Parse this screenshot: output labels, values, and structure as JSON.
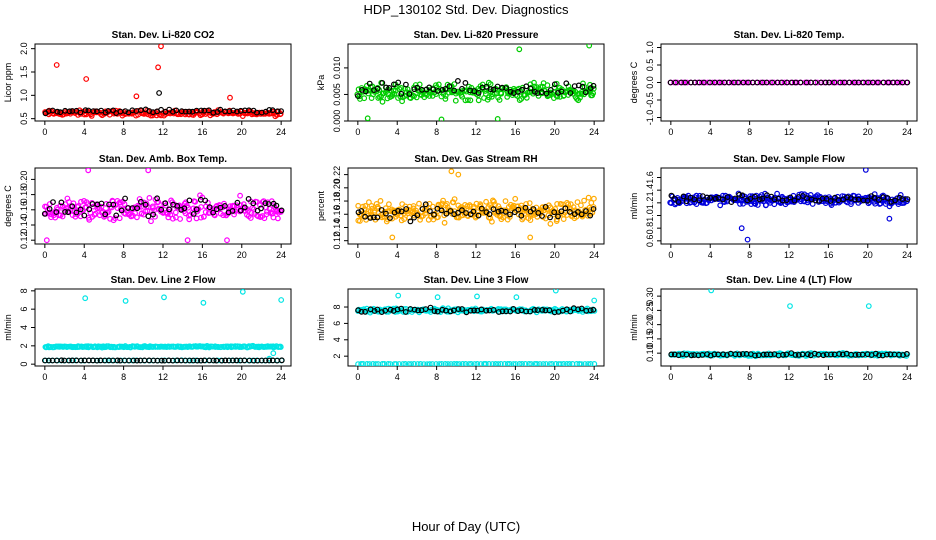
{
  "title": "HDP_130102  Std. Dev. Diagnostics",
  "xlabel": "Hour of Day (UTC)",
  "chart_data": [
    {
      "type": "scatter",
      "title": "Stan. Dev. Li-820 CO2",
      "ylabel": "Licor ppm",
      "xlim": [
        -1,
        25
      ],
      "ylim": [
        0.45,
        2.1
      ],
      "xticks": [
        0,
        4,
        8,
        12,
        16,
        20,
        24
      ],
      "yticks": [
        0.5,
        1.0,
        1.5,
        2.0
      ],
      "ytick_labels": [
        "0.5",
        "1.0",
        "1.5",
        "2.0"
      ],
      "series": [
        {
          "color": "#ff0000",
          "base": 0.62,
          "spread": 0.08,
          "n": 200,
          "outliers": [
            [
              1.2,
              1.65
            ],
            [
              4.2,
              1.35
            ],
            [
              11.5,
              1.6
            ],
            [
              11.8,
              2.05
            ],
            [
              18.8,
              0.95
            ],
            [
              9.3,
              0.98
            ]
          ]
        },
        {
          "color": "#000000",
          "base": 0.66,
          "spread": 0.06,
          "n": 60,
          "outliers": [
            [
              11.6,
              1.05
            ]
          ]
        }
      ]
    },
    {
      "type": "scatter",
      "title": "Stan. Dev. Li-820 Pressure",
      "ylabel": "kPa",
      "xlim": [
        -1,
        25
      ],
      "ylim": [
        0.0,
        0.0145
      ],
      "xticks": [
        0,
        4,
        8,
        12,
        16,
        20,
        24
      ],
      "yticks": [
        0.0,
        0.005,
        0.01
      ],
      "ytick_labels": [
        "0.000",
        "0.005",
        "0.010"
      ],
      "series": [
        {
          "color": "#00cc00",
          "base": 0.0055,
          "spread": 0.0022,
          "n": 260,
          "outliers": [
            [
              23.5,
              0.0142
            ],
            [
              16.4,
              0.0135
            ],
            [
              1.0,
              0.0005
            ],
            [
              8.5,
              0.0003
            ],
            [
              14.2,
              0.0004
            ]
          ]
        },
        {
          "color": "#000000",
          "base": 0.006,
          "spread": 0.0018,
          "n": 60,
          "outliers": []
        }
      ]
    },
    {
      "type": "scatter",
      "title": "Stan. Dev. Li-820 Temp.",
      "ylabel": "degrees C",
      "xlim": [
        -1,
        25
      ],
      "ylim": [
        -1.1,
        1.1
      ],
      "xticks": [
        0,
        4,
        8,
        12,
        16,
        20,
        24
      ],
      "yticks": [
        -1.0,
        -0.5,
        0.0,
        0.5,
        1.0
      ],
      "ytick_labels": [
        "-1.0",
        "-0.5",
        "0.0",
        "0.5",
        "1.0"
      ],
      "series": [
        {
          "color": "#ff00ff",
          "base": 0.0,
          "spread": 0.0,
          "n": 70,
          "outliers": []
        },
        {
          "color": "#000000",
          "base": 0.0,
          "spread": 0.0,
          "n": 50,
          "outliers": []
        }
      ]
    },
    {
      "type": "scatter",
      "title": "Stan. Dev. Amb. Box Temp.",
      "ylabel": "degrees C",
      "xlim": [
        -1,
        25
      ],
      "ylim": [
        0.115,
        0.215
      ],
      "xticks": [
        0,
        4,
        8,
        12,
        16,
        20,
        24
      ],
      "yticks": [
        0.12,
        0.14,
        0.16,
        0.18,
        0.2
      ],
      "ytick_labels": [
        "0.12",
        "0.14",
        "0.16",
        "0.18",
        "0.20"
      ],
      "series": [
        {
          "color": "#ff00ff",
          "base": 0.16,
          "spread": 0.022,
          "n": 260,
          "outliers": [
            [
              0.2,
              0.12
            ],
            [
              4.4,
              0.212
            ],
            [
              10.5,
              0.212
            ],
            [
              18.5,
              0.12
            ],
            [
              14.5,
              0.12
            ]
          ]
        },
        {
          "color": "#000000",
          "base": 0.163,
          "spread": 0.016,
          "n": 60,
          "outliers": []
        }
      ]
    },
    {
      "type": "scatter",
      "title": "Stan. Dev. Gas Stream RH",
      "ylabel": "percent",
      "xlim": [
        -1,
        25
      ],
      "ylim": [
        0.115,
        0.23
      ],
      "xticks": [
        0,
        4,
        8,
        12,
        16,
        20,
        24
      ],
      "yticks": [
        0.12,
        0.14,
        0.16,
        0.18,
        0.2,
        0.22
      ],
      "ytick_labels": [
        "0.12",
        "0.14",
        "0.16",
        "0.18",
        "0.20",
        "0.22"
      ],
      "series": [
        {
          "color": "#ffaa00",
          "base": 0.165,
          "spread": 0.025,
          "n": 300,
          "outliers": [
            [
              9.5,
              0.225
            ],
            [
              10.2,
              0.22
            ],
            [
              3.5,
              0.125
            ],
            [
              17.5,
              0.125
            ]
          ]
        },
        {
          "color": "#000000",
          "base": 0.163,
          "spread": 0.016,
          "n": 60,
          "outliers": []
        }
      ]
    },
    {
      "type": "scatter",
      "title": "Stan. Dev. Sample Flow",
      "ylabel": "ml/min",
      "xlim": [
        -1,
        25
      ],
      "ylim": [
        0.55,
        1.75
      ],
      "xticks": [
        0,
        4,
        8,
        12,
        16,
        20,
        24
      ],
      "yticks": [
        0.6,
        0.8,
        1.0,
        1.2,
        1.4,
        1.6
      ],
      "ytick_labels": [
        "0.6",
        "0.8",
        "1.0",
        "1.2",
        "1.4",
        "1.6"
      ],
      "series": [
        {
          "color": "#0000dd",
          "base": 1.25,
          "spread": 0.12,
          "n": 280,
          "outliers": [
            [
              7.8,
              0.62
            ],
            [
              7.2,
              0.8
            ],
            [
              19.8,
              1.72
            ],
            [
              22.2,
              0.95
            ]
          ]
        },
        {
          "color": "#000000",
          "base": 1.27,
          "spread": 0.08,
          "n": 60,
          "outliers": []
        }
      ]
    },
    {
      "type": "scatter",
      "title": "Stan. Dev. Line 2 Flow",
      "ylabel": "ml/min",
      "xlim": [
        -1,
        25
      ],
      "ylim": [
        -0.2,
        8.2
      ],
      "xticks": [
        0,
        4,
        8,
        12,
        16,
        20,
        24
      ],
      "yticks": [
        0,
        2,
        4,
        6,
        8
      ],
      "ytick_labels": [
        "0",
        "2",
        "4",
        "6",
        "8"
      ],
      "series": [
        {
          "color": "#00e5e5",
          "base": 1.9,
          "spread": 0.12,
          "n": 220,
          "outliers": [
            [
              4.1,
              7.2
            ],
            [
              8.2,
              6.9
            ],
            [
              12.1,
              7.3
            ],
            [
              16.1,
              6.7
            ],
            [
              20.1,
              7.9
            ],
            [
              24.0,
              7.0
            ],
            [
              22.8,
              0.6
            ],
            [
              23.2,
              1.2
            ]
          ]
        },
        {
          "color": "#00e5e5",
          "base": 0.4,
          "spread": 0.02,
          "n": 60,
          "outliers": []
        },
        {
          "color": "#000000",
          "base": 0.4,
          "spread": 0.03,
          "n": 60,
          "outliers": []
        }
      ]
    },
    {
      "type": "scatter",
      "title": "Stan. Dev. Line 3 Flow",
      "ylabel": "ml/min",
      "xlim": [
        -1,
        25
      ],
      "ylim": [
        0.8,
        10.2
      ],
      "xticks": [
        0,
        4,
        8,
        12,
        16,
        20,
        24
      ],
      "yticks": [
        2,
        4,
        6,
        8
      ],
      "ytick_labels": [
        "2",
        "4",
        "6",
        "8"
      ],
      "series": [
        {
          "color": "#00e5e5",
          "base": 7.6,
          "spread": 0.35,
          "n": 220,
          "outliers": [
            [
              4.1,
              9.4
            ],
            [
              8.1,
              9.2
            ],
            [
              12.1,
              9.3
            ],
            [
              16.1,
              9.2
            ],
            [
              20.1,
              10.0
            ],
            [
              24.0,
              8.8
            ]
          ]
        },
        {
          "color": "#00e5e5",
          "base": 1.05,
          "spread": 0.02,
          "n": 80,
          "outliers": []
        },
        {
          "color": "#000000",
          "base": 7.6,
          "spread": 0.4,
          "n": 60,
          "outliers": []
        }
      ]
    },
    {
      "type": "scatter",
      "title": "Stan. Dev. Line 4 (LT) Flow",
      "ylabel": "ml/min",
      "xlim": [
        -1,
        25
      ],
      "ylim": [
        0.055,
        0.325
      ],
      "xticks": [
        0,
        4,
        8,
        12,
        16,
        20,
        24
      ],
      "yticks": [
        0.1,
        0.15,
        0.2,
        0.25,
        0.3
      ],
      "ytick_labels": [
        "0.10",
        "0.15",
        "0.20",
        "0.25",
        "0.30"
      ],
      "series": [
        {
          "color": "#00e5e5",
          "base": 0.095,
          "spread": 0.007,
          "n": 240,
          "outliers": [
            [
              4.1,
              0.32
            ],
            [
              12.1,
              0.265
            ],
            [
              20.1,
              0.265
            ]
          ]
        },
        {
          "color": "#000000",
          "base": 0.095,
          "spread": 0.006,
          "n": 60,
          "outliers": []
        }
      ]
    }
  ]
}
